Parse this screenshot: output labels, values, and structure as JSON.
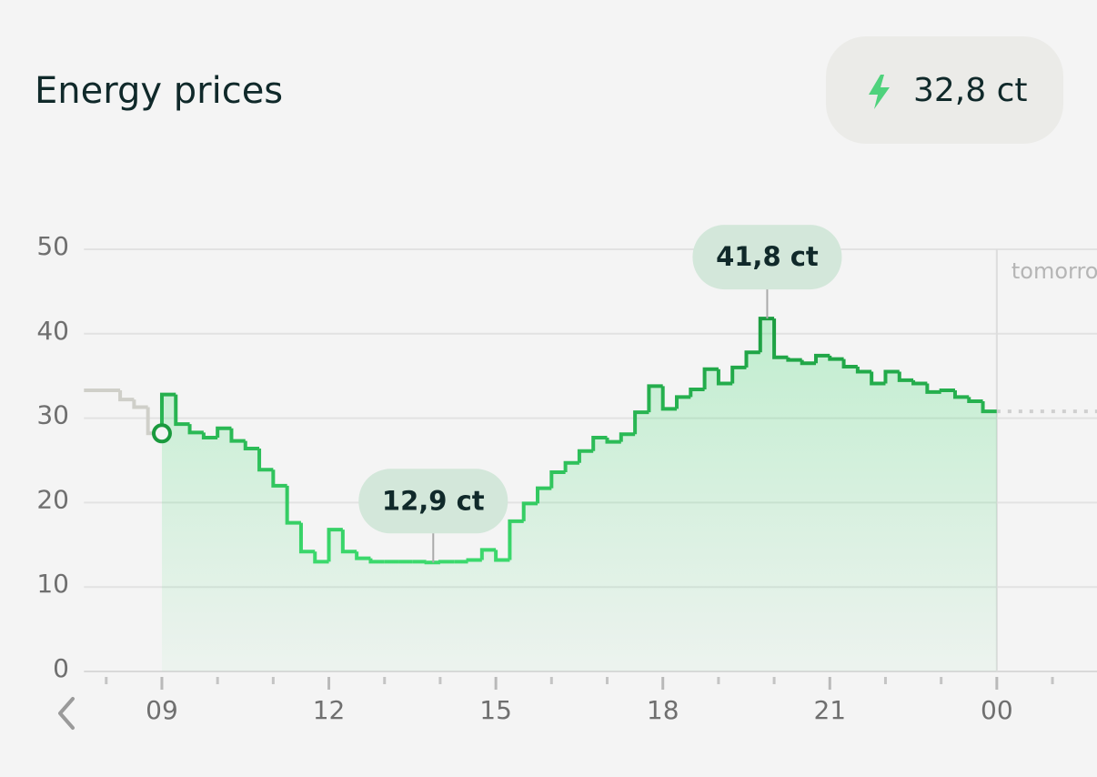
{
  "header": {
    "title": "Energy prices",
    "price": "32,8 ct"
  },
  "chart_data": {
    "type": "step",
    "xlim": [
      7.6,
      25.8
    ],
    "xticks": [
      {
        "value": 9,
        "label": "09"
      },
      12,
      15,
      18,
      21,
      {
        "value": 24,
        "label": "00"
      }
    ],
    "xminorticks": [
      8,
      10,
      11,
      13,
      14,
      16,
      17,
      19,
      20,
      22,
      23,
      25
    ],
    "ylim": [
      0,
      50
    ],
    "yticks": [
      0,
      10,
      20,
      30,
      40,
      50
    ],
    "grid": true,
    "divider": {
      "x": 24,
      "label": "tomorrow"
    },
    "past": {
      "color": "#cfcfc9",
      "x": [
        7.6,
        8.25,
        8.5,
        8.75
      ],
      "values": [
        33.3,
        32.2,
        31.3,
        28.2
      ]
    },
    "series": [
      {
        "color": "#1a9a3e",
        "color_low": "#3ddc6f",
        "x": [
          9,
          9.25,
          9.5,
          9.75,
          10,
          10.25,
          10.5,
          10.75,
          11,
          11.25,
          11.5,
          11.75,
          12,
          12.25,
          12.5,
          12.75,
          13,
          13.25,
          13.5,
          13.75,
          14,
          14.25,
          14.5,
          14.75,
          15,
          15.25,
          15.5,
          15.75,
          16,
          16.25,
          16.5,
          16.75,
          17,
          17.25,
          17.5,
          17.75,
          18,
          18.25,
          18.5,
          18.75,
          19,
          19.25,
          19.5,
          19.75,
          20,
          20.25,
          20.5,
          20.75,
          21,
          21.25,
          21.5,
          21.75,
          22,
          22.25,
          22.5,
          22.75,
          23,
          23.25,
          23.5,
          23.75
        ],
        "values": [
          32.8,
          29.3,
          28.3,
          27.7,
          28.8,
          27.3,
          26.4,
          23.9,
          22.0,
          17.6,
          14.2,
          13.0,
          16.8,
          14.2,
          13.4,
          13.0,
          13.0,
          13.0,
          13.0,
          12.9,
          13.0,
          13.0,
          13.2,
          14.4,
          13.2,
          17.8,
          19.9,
          21.7,
          23.6,
          24.7,
          26.1,
          27.7,
          27.2,
          28.1,
          30.7,
          33.8,
          31.1,
          32.5,
          33.4,
          35.8,
          34.1,
          36.0,
          37.8,
          41.8,
          37.2,
          36.9,
          36.5,
          37.4,
          37.0,
          36.1,
          35.5,
          34.1,
          35.5,
          34.5,
          34.1,
          33.1,
          33.3,
          32.5,
          32.0,
          30.8
        ]
      }
    ],
    "annotations": [
      {
        "x": 19.875,
        "value": 41.8,
        "label": "41,8 ct"
      },
      {
        "x": 13.875,
        "value": 12.9,
        "label": "12,9 ct"
      }
    ]
  }
}
